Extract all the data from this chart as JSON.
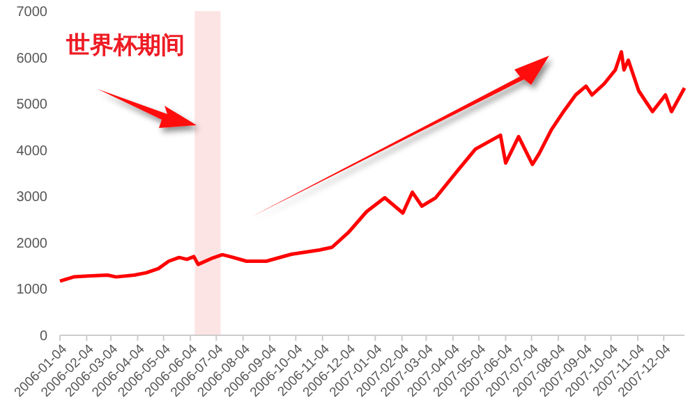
{
  "chart_data": {
    "type": "line",
    "x": [
      "2006-01-04",
      "2006-01-20",
      "2006-02-06",
      "2006-02-28",
      "2006-03-10",
      "2006-03-31",
      "2006-04-14",
      "2006-04-28",
      "2006-05-10",
      "2006-05-22",
      "2006-05-31",
      "2006-06-08",
      "2006-06-13",
      "2006-06-30",
      "2006-07-11",
      "2006-07-20",
      "2006-08-08",
      "2006-08-31",
      "2006-09-29",
      "2006-10-31",
      "2006-11-15",
      "2006-12-04",
      "2006-12-25",
      "2007-01-15",
      "2007-02-05",
      "2007-02-16",
      "2007-02-27",
      "2007-03-15",
      "2007-04-10",
      "2007-04-30",
      "2007-05-29",
      "2007-06-04",
      "2007-06-19",
      "2007-07-05",
      "2007-07-13",
      "2007-07-27",
      "2007-08-10",
      "2007-08-24",
      "2007-09-05",
      "2007-09-12",
      "2007-09-26",
      "2007-10-09",
      "2007-10-16",
      "2007-10-19",
      "2007-10-24",
      "2007-11-05",
      "2007-11-21",
      "2007-12-06",
      "2007-12-13",
      "2007-12-28"
    ],
    "series": [
      {
        "color": "#ff0000",
        "values": [
          1170,
          1260,
          1280,
          1300,
          1260,
          1300,
          1350,
          1440,
          1600,
          1680,
          1640,
          1700,
          1530,
          1670,
          1740,
          1700,
          1600,
          1600,
          1750,
          1840,
          1900,
          2220,
          2670,
          2970,
          2640,
          3090,
          2790,
          2970,
          3570,
          4020,
          4320,
          3720,
          4290,
          3690,
          3930,
          4440,
          4830,
          5190,
          5380,
          5190,
          5430,
          5730,
          6120,
          5730,
          5940,
          5280,
          4830,
          5190,
          4830,
          5340
        ]
      }
    ],
    "xlim": [
      "2006-01-04",
      "2007-12-28"
    ],
    "xticks": [
      "2006-01-04",
      "2006-02-04",
      "2006-03-04",
      "2006-04-04",
      "2006-05-04",
      "2006-06-04",
      "2006-07-04",
      "2006-08-04",
      "2006-09-04",
      "2006-10-04",
      "2006-11-04",
      "2006-12-04",
      "2007-01-04",
      "2007-02-04",
      "2007-03-04",
      "2007-04-04",
      "2007-05-04",
      "2007-06-04",
      "2007-07-04",
      "2007-08-04",
      "2007-09-04",
      "2007-10-04",
      "2007-11-04",
      "2007-12-04"
    ],
    "ylim": [
      0,
      7000
    ],
    "yticks": [
      0,
      1000,
      2000,
      3000,
      4000,
      5000,
      6000,
      7000
    ],
    "bands": [
      {
        "axis": "x",
        "from": "2006-06-09",
        "to": "2006-07-09",
        "label": "世界杯期间",
        "color": "#fde4e4"
      }
    ],
    "grid": false,
    "marker": "none",
    "line_style": "solid"
  }
}
